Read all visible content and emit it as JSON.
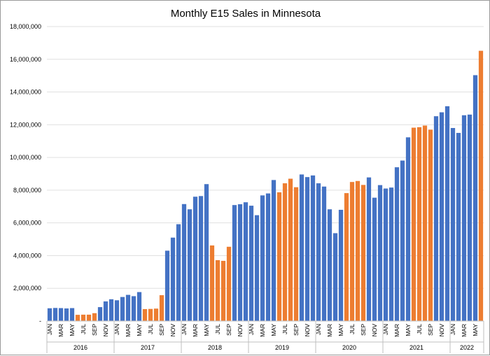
{
  "chart_data": {
    "type": "bar",
    "title": "Monthly E15 Sales in Minnesota",
    "xlabel": "",
    "ylabel": "",
    "ylim": [
      0,
      18000000
    ],
    "yticks": [
      {
        "value": 0,
        "label": "-"
      },
      {
        "value": 2000000,
        "label": "2,000,000"
      },
      {
        "value": 4000000,
        "label": "4,000,000"
      },
      {
        "value": 6000000,
        "label": "6,000,000"
      },
      {
        "value": 8000000,
        "label": "8,000,000"
      },
      {
        "value": 10000000,
        "label": "10,000,000"
      },
      {
        "value": 12000000,
        "label": "12,000,000"
      },
      {
        "value": 14000000,
        "label": "14,000,000"
      },
      {
        "value": 16000000,
        "label": "16,000,000"
      },
      {
        "value": 18000000,
        "label": "18,000,000"
      }
    ],
    "grid": true,
    "legend": "none",
    "colors": {
      "summer": "#ed7d31",
      "other": "#4472c4"
    },
    "month_labels": [
      "JAN",
      "MAR",
      "MAY",
      "JUL",
      "SEP",
      "NOV"
    ],
    "years": [
      {
        "label": "2016",
        "months": 12
      },
      {
        "label": "2017",
        "months": 12
      },
      {
        "label": "2018",
        "months": 12
      },
      {
        "label": "2019",
        "months": 12
      },
      {
        "label": "2020",
        "months": 12
      },
      {
        "label": "2021",
        "months": 12
      },
      {
        "label": "2022",
        "months": 6
      }
    ],
    "series": [
      {
        "values": [
          780000,
          800000,
          790000,
          770000,
          790000,
          380000,
          390000,
          390000,
          480000,
          850000,
          1200000,
          1330000,
          1270000,
          1470000,
          1600000,
          1520000,
          1770000,
          730000,
          740000,
          760000,
          1580000,
          4300000,
          5100000,
          5920000,
          7150000,
          6830000,
          7600000,
          7640000,
          8370000,
          4620000,
          3720000,
          3680000,
          4540000,
          7090000,
          7140000,
          7260000,
          7050000,
          6470000,
          7680000,
          7800000,
          8620000,
          7870000,
          8420000,
          8700000,
          8180000,
          8960000,
          8800000,
          8900000,
          8420000,
          8220000,
          6830000,
          5370000,
          6800000,
          7820000,
          8500000,
          8560000,
          8320000,
          8780000,
          7540000,
          8310000,
          8100000,
          8160000,
          9400000,
          9810000,
          11230000,
          11820000,
          11850000,
          11950000,
          11700000,
          12520000,
          12760000,
          13130000,
          11800000,
          11500000,
          12580000,
          12620000,
          15030000,
          16520000
        ],
        "summer_flags": [
          0,
          0,
          0,
          0,
          0,
          1,
          1,
          1,
          1,
          0,
          0,
          0,
          0,
          0,
          0,
          0,
          0,
          1,
          1,
          1,
          1,
          0,
          0,
          0,
          0,
          0,
          0,
          0,
          0,
          1,
          1,
          1,
          1,
          0,
          0,
          0,
          0,
          0,
          0,
          0,
          0,
          1,
          1,
          1,
          1,
          0,
          0,
          0,
          0,
          0,
          0,
          0,
          0,
          1,
          1,
          1,
          1,
          0,
          0,
          0,
          0,
          0,
          0,
          0,
          0,
          1,
          1,
          1,
          1,
          0,
          0,
          0,
          0,
          0,
          0,
          0,
          0,
          1
        ]
      }
    ]
  }
}
